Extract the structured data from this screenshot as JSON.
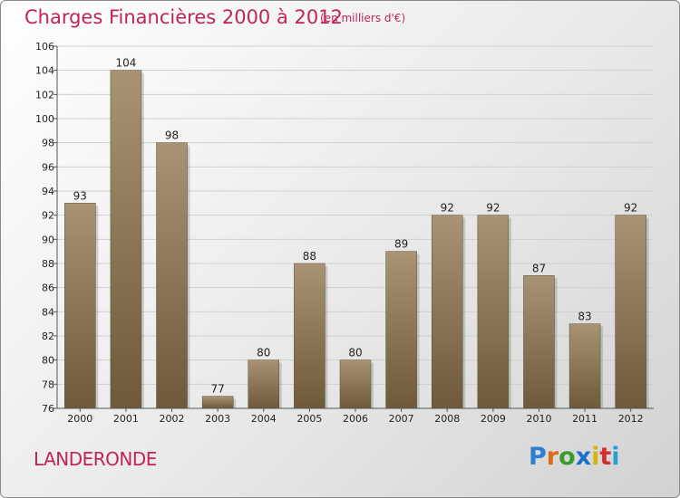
{
  "header": {
    "title": "Charges Financières 2000 à 2012",
    "subtitle": "(en milliers d'€)"
  },
  "footer": {
    "commune": "LANDERONDE",
    "logo": "Proxiti",
    "logo_colors": [
      "#2e7fd1",
      "#e06a1a",
      "#3b9a2d",
      "#1d6fcf",
      "#d6b40c",
      "#d62f2f",
      "#27a0d6"
    ]
  },
  "colors": {
    "title": "#c0245a",
    "bar_top": "#a89474",
    "bar_bottom": "#6e5a3b"
  },
  "chart_data": {
    "type": "bar",
    "title": "Charges Financières 2000 à 2012",
    "subtitle": "(en milliers d'€)",
    "xlabel": "",
    "ylabel": "",
    "categories": [
      "2000",
      "2001",
      "2002",
      "2003",
      "2004",
      "2005",
      "2006",
      "2007",
      "2008",
      "2009",
      "2010",
      "2011",
      "2012"
    ],
    "values": [
      93,
      104,
      98,
      77,
      80,
      88,
      80,
      89,
      92,
      92,
      87,
      83,
      92
    ],
    "ylim": [
      76,
      106
    ],
    "yticks": [
      76,
      78,
      80,
      82,
      84,
      86,
      88,
      90,
      92,
      94,
      96,
      98,
      100,
      102,
      104,
      106
    ],
    "grid": true,
    "data_labels": true
  }
}
